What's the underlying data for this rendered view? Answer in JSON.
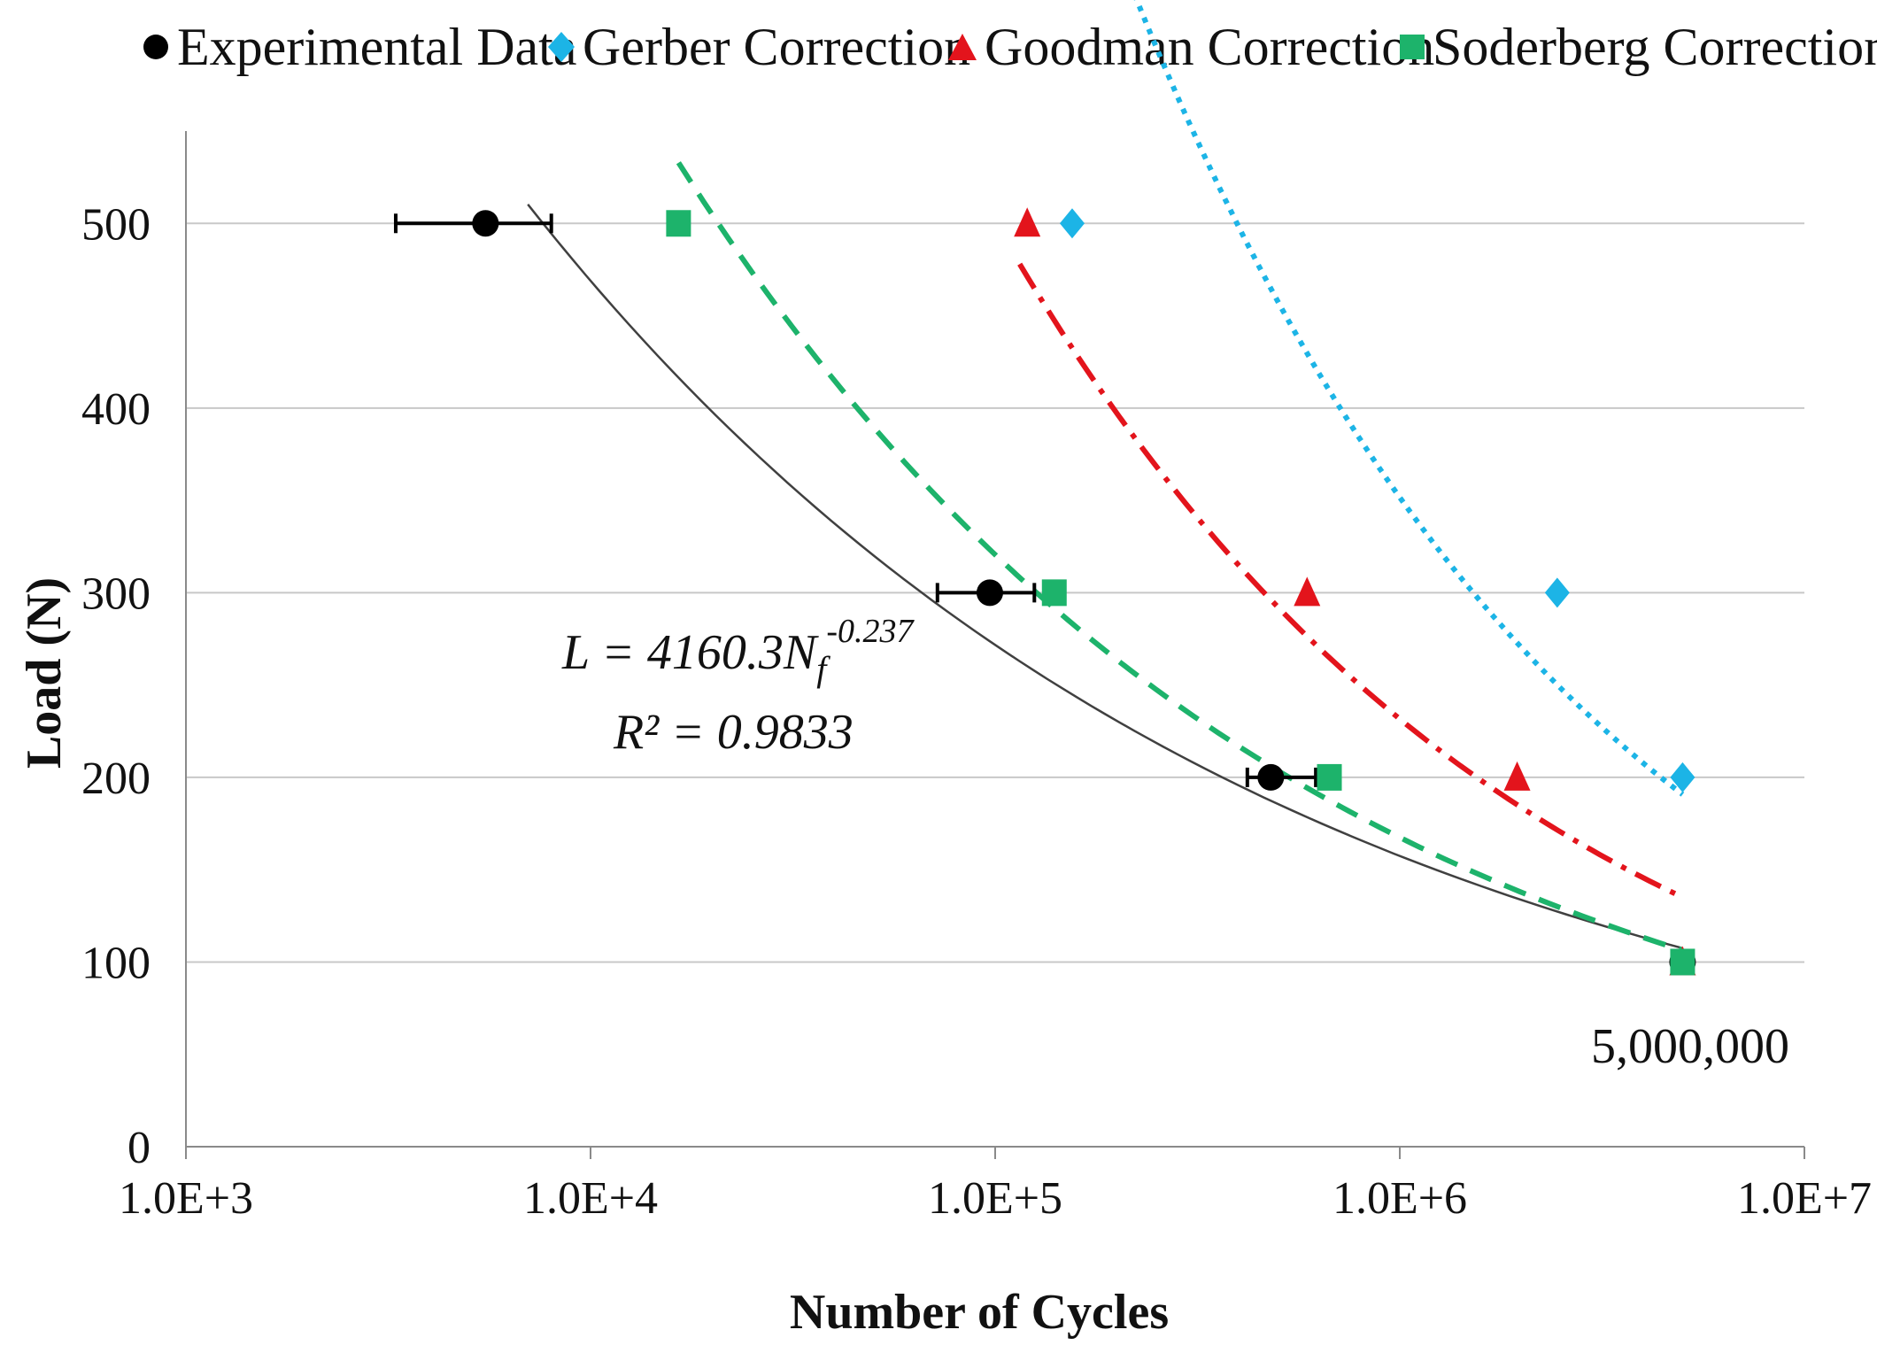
{
  "chart_data": {
    "type": "scatter",
    "title": "",
    "xlabel": "Number of Cycles",
    "ylabel": "Load (N)",
    "xscale": "log",
    "xlim": [
      1000,
      10000000
    ],
    "ylim": [
      0,
      550
    ],
    "x_tick_values": [
      1000,
      10000,
      100000,
      1000000,
      10000000
    ],
    "x_tick_labels": [
      "1.0E+3",
      "1.0E+4",
      "1.0E+5",
      "1.0E+6",
      "1.0E+7"
    ],
    "y_tick_values": [
      0,
      100,
      200,
      300,
      400,
      500
    ],
    "y_tick_labels": [
      "0",
      "100",
      "200",
      "300",
      "400",
      "500"
    ],
    "grid": "horizontal",
    "legend_position": "top",
    "series": [
      {
        "name": "Experimental Data",
        "marker": "circle",
        "color": "#000000",
        "points": [
          {
            "x": 5500,
            "y": 500,
            "xerr_low": 3300,
            "xerr_high": 8000
          },
          {
            "x": 97000,
            "y": 300,
            "xerr_low": 72000,
            "xerr_high": 125000
          },
          {
            "x": 480000,
            "y": 200,
            "xerr_low": 420000,
            "xerr_high": 620000
          },
          {
            "x": 5000000,
            "y": 100
          }
        ]
      },
      {
        "name": "Gerber Correction",
        "marker": "diamond",
        "color": "#1cb4e6",
        "points": [
          {
            "x": 155000,
            "y": 500
          },
          {
            "x": 2450000,
            "y": 300
          },
          {
            "x": 5000000,
            "y": 200
          }
        ]
      },
      {
        "name": "Goodman Correction",
        "marker": "triangle",
        "color": "#e3141c",
        "points": [
          {
            "x": 120000,
            "y": 500
          },
          {
            "x": 590000,
            "y": 300
          },
          {
            "x": 1950000,
            "y": 200
          },
          {
            "x": 5000000,
            "y": 100
          }
        ]
      },
      {
        "name": "Soderberg Correction",
        "marker": "square",
        "color": "#1db36b",
        "points": [
          {
            "x": 16500,
            "y": 500
          },
          {
            "x": 140000,
            "y": 300
          },
          {
            "x": 670000,
            "y": 200
          },
          {
            "x": 5000000,
            "y": 100
          }
        ]
      }
    ],
    "trendlines": [
      {
        "series": "Experimental Data",
        "a": 4160.3,
        "b": -0.237,
        "x_start": 7000,
        "x_end": 5000000,
        "color": "#404040",
        "style": "solid"
      },
      {
        "series": "Soderberg Correction",
        "a": 8240,
        "b": -0.282,
        "x_start": 16500,
        "x_end": 5000000,
        "color": "#1db36b",
        "style": "dashed"
      },
      {
        "series": "Goodman Correction",
        "a": 23700,
        "b": -0.335,
        "x_start": 115000,
        "x_end": 5000000,
        "color": "#e3141c",
        "style": "dashdot"
      },
      {
        "series": "Gerber Correction",
        "a": 67000,
        "b": -0.38,
        "x_start": 160000,
        "x_end": 5000000,
        "color": "#1cb4e6",
        "style": "dotted"
      }
    ],
    "annotations": [
      {
        "text_parts": [
          "L = 4160.3N",
          "f",
          "-0.237"
        ],
        "line2": "R² = 0.9833"
      },
      {
        "text": "5,000,000"
      }
    ]
  }
}
